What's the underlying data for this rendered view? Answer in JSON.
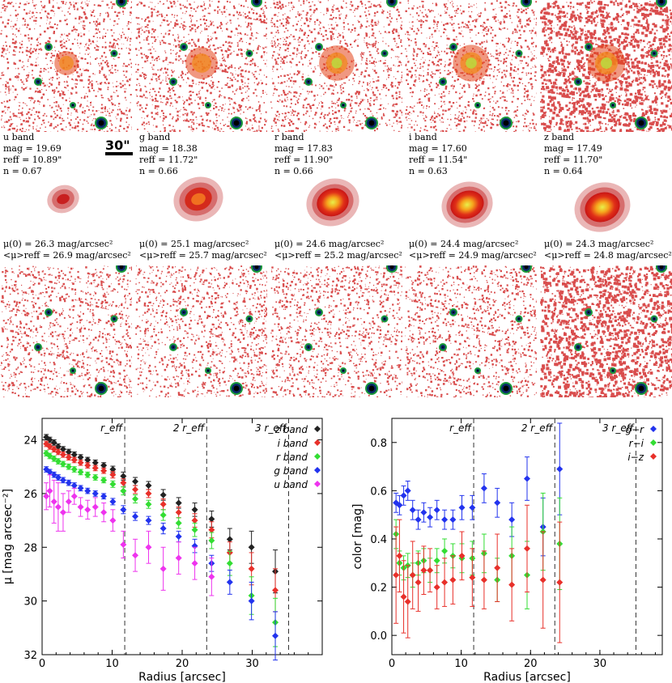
{
  "scale_bar": "30\"",
  "bands": [
    {
      "name": "u band",
      "mag": "mag = 19.69",
      "reff": "reff = 10.89\"",
      "n": "n = 0.67",
      "mu0": "μ(0) = 26.3 mag/arcsec²",
      "mureff": "<μ>reff = 26.9 mag/arcsec²"
    },
    {
      "name": "g band",
      "mag": "mag = 18.38",
      "reff": "reff = 11.72\"",
      "n": "n = 0.66",
      "mu0": "μ(0) = 25.1 mag/arcsec²",
      "mureff": "<μ>reff = 25.7 mag/arcsec²"
    },
    {
      "name": "r band",
      "mag": "mag = 17.83",
      "reff": "reff = 11.90\"",
      "n": "n = 0.66",
      "mu0": "μ(0) = 24.6 mag/arcsec²",
      "mureff": "<μ>reff = 25.2 mag/arcsec²"
    },
    {
      "name": "i band",
      "mag": "mag = 17.60",
      "reff": "reff = 11.54\"",
      "n": "n = 0.63",
      "mu0": "μ(0) = 24.4 mag/arcsec²",
      "mureff": "<μ>reff = 24.9 mag/arcsec²"
    },
    {
      "name": "z band",
      "mag": "mag = 17.49",
      "reff": "reff = 11.70\"",
      "n": "n = 0.64",
      "mu0": "μ(0) = 24.3 mag/arcsec²",
      "mureff": "<μ>reff = 24.8 mag/arcsec²"
    }
  ],
  "colors": {
    "z": "#222222",
    "i": "#e8302a",
    "r": "#33dd33",
    "g": "#2233ee",
    "u": "#ee33ee",
    "bg_red": "#cc1111"
  },
  "chart_data": [
    {
      "type": "scatter",
      "title": "",
      "xlabel": "Radius [arcsec]",
      "ylabel": "μ [mag arcsec⁻²]",
      "xlim": [
        0,
        40
      ],
      "ylim": [
        32,
        23.2
      ],
      "xticks": [
        "0",
        "10",
        "20",
        "30"
      ],
      "yticks": [
        "24",
        "26",
        "28",
        "30",
        "32"
      ],
      "reff_lines": [
        {
          "x": 11.8,
          "label": "r_eff"
        },
        {
          "x": 23.5,
          "label": "2 r_eff"
        },
        {
          "x": 35.2,
          "label": "3 r_eff"
        }
      ],
      "legend": [
        "z band",
        "i band",
        "r band",
        "g band",
        "u band"
      ],
      "series": [
        {
          "name": "z band",
          "x": [
            0.6,
            1.1,
            1.7,
            2.3,
            3,
            3.8,
            4.6,
            5.5,
            6.5,
            7.6,
            8.8,
            10.1,
            11.6,
            13.3,
            15.2,
            17.3,
            19.5,
            21.8,
            24.2,
            26.8,
            29.9,
            33.3
          ],
          "y": [
            23.9,
            24.0,
            24.1,
            24.25,
            24.35,
            24.45,
            24.55,
            24.65,
            24.75,
            24.85,
            24.95,
            25.1,
            25.35,
            25.55,
            25.7,
            26.05,
            26.35,
            26.6,
            26.95,
            27.7,
            28.0,
            28.9
          ],
          "err": [
            0.1,
            0.1,
            0.1,
            0.1,
            0.1,
            0.1,
            0.1,
            0.1,
            0.1,
            0.1,
            0.1,
            0.12,
            0.15,
            0.15,
            0.15,
            0.2,
            0.2,
            0.25,
            0.3,
            0.4,
            0.6,
            0.8
          ]
        },
        {
          "name": "i band",
          "x": [
            0.6,
            1.1,
            1.7,
            2.3,
            3,
            3.8,
            4.6,
            5.5,
            6.5,
            7.6,
            8.8,
            10.1,
            11.6,
            13.3,
            15.2,
            17.3,
            19.5,
            21.8,
            24.2,
            26.8,
            29.9,
            33.3
          ],
          "y": [
            24.15,
            24.25,
            24.35,
            24.45,
            24.55,
            24.65,
            24.75,
            24.85,
            24.95,
            25.05,
            25.15,
            25.3,
            25.6,
            25.85,
            26.0,
            26.4,
            26.7,
            27.0,
            27.35,
            28.2,
            28.8,
            29.6
          ],
          "err": [
            0.1,
            0.1,
            0.1,
            0.1,
            0.1,
            0.1,
            0.1,
            0.1,
            0.1,
            0.1,
            0.1,
            0.12,
            0.15,
            0.15,
            0.15,
            0.2,
            0.2,
            0.25,
            0.3,
            0.4,
            0.6,
            0.8
          ]
        },
        {
          "name": "r band",
          "x": [
            0.6,
            1.1,
            1.7,
            2.3,
            3,
            3.8,
            4.6,
            5.5,
            6.5,
            7.6,
            8.8,
            10.1,
            11.6,
            13.3,
            15.2,
            17.3,
            19.5,
            21.8,
            24.2,
            26.8,
            29.9,
            33.3
          ],
          "y": [
            24.5,
            24.6,
            24.7,
            24.8,
            24.9,
            25.0,
            25.1,
            25.2,
            25.3,
            25.4,
            25.5,
            25.65,
            25.9,
            26.2,
            26.4,
            26.8,
            27.1,
            27.35,
            27.75,
            28.6,
            29.8,
            30.8
          ],
          "err": [
            0.1,
            0.1,
            0.1,
            0.1,
            0.1,
            0.1,
            0.1,
            0.1,
            0.1,
            0.1,
            0.1,
            0.12,
            0.15,
            0.15,
            0.15,
            0.2,
            0.2,
            0.25,
            0.3,
            0.45,
            0.7,
            0.9
          ]
        },
        {
          "name": "g band",
          "x": [
            0.6,
            1.1,
            1.7,
            2.3,
            3,
            3.8,
            4.6,
            5.5,
            6.5,
            7.6,
            8.8,
            10.1,
            11.6,
            13.3,
            15.2,
            17.3,
            19.5,
            21.8,
            24.2,
            26.8,
            29.9,
            33.3
          ],
          "y": [
            25.1,
            25.2,
            25.3,
            25.4,
            25.5,
            25.6,
            25.7,
            25.8,
            25.9,
            26.0,
            26.1,
            26.3,
            26.6,
            26.85,
            27.0,
            27.3,
            27.6,
            27.95,
            28.6,
            29.3,
            30.0,
            31.3
          ],
          "err": [
            0.1,
            0.1,
            0.1,
            0.1,
            0.1,
            0.1,
            0.1,
            0.1,
            0.1,
            0.1,
            0.1,
            0.12,
            0.15,
            0.15,
            0.15,
            0.2,
            0.2,
            0.25,
            0.3,
            0.45,
            0.7,
            0.9
          ]
        },
        {
          "name": "u band",
          "x": [
            0.6,
            1.1,
            1.7,
            2.3,
            3,
            3.8,
            4.6,
            5.5,
            6.5,
            7.6,
            8.8,
            10.1,
            11.6,
            13.3,
            15.2,
            17.3,
            19.5,
            21.8,
            24.2
          ],
          "y": [
            26.1,
            25.9,
            26.3,
            26.5,
            26.7,
            26.3,
            26.1,
            26.5,
            26.6,
            26.5,
            26.7,
            27.0,
            27.9,
            28.3,
            28.0,
            28.8,
            28.4,
            28.6,
            29.1
          ],
          "err": [
            0.5,
            0.6,
            0.8,
            0.9,
            0.7,
            0.4,
            0.3,
            0.35,
            0.35,
            0.35,
            0.35,
            0.4,
            0.5,
            0.6,
            0.6,
            0.8,
            0.6,
            0.6,
            0.7
          ]
        }
      ]
    },
    {
      "type": "scatter",
      "title": "",
      "xlabel": "Radius [arcsec]",
      "ylabel": "color [mag]",
      "xlim": [
        0,
        39
      ],
      "ylim": [
        -0.08,
        0.9
      ],
      "xticks": [
        "0",
        "10",
        "20",
        "30"
      ],
      "yticks": [
        "0.0",
        "0.2",
        "0.4",
        "0.6",
        "0.8"
      ],
      "reff_lines": [
        {
          "x": 11.8,
          "label": "r_eff"
        },
        {
          "x": 23.5,
          "label": "2 r_eff"
        },
        {
          "x": 35.2,
          "label": "3 r_eff"
        }
      ],
      "legend": [
        "g−r",
        "r−i",
        "i−z"
      ],
      "series": [
        {
          "name": "g−r",
          "x": [
            0.6,
            1.1,
            1.7,
            2.3,
            3,
            3.8,
            4.6,
            5.5,
            6.5,
            7.6,
            8.8,
            10.1,
            11.6,
            13.3,
            15.2,
            17.3,
            19.5,
            21.8,
            24.2
          ],
          "y": [
            0.55,
            0.54,
            0.58,
            0.6,
            0.52,
            0.48,
            0.51,
            0.49,
            0.52,
            0.48,
            0.48,
            0.53,
            0.53,
            0.61,
            0.55,
            0.48,
            0.65,
            0.45,
            0.69
          ],
          "err": [
            0.04,
            0.04,
            0.04,
            0.04,
            0.04,
            0.04,
            0.04,
            0.04,
            0.04,
            0.04,
            0.04,
            0.05,
            0.05,
            0.06,
            0.06,
            0.07,
            0.09,
            0.12,
            0.19
          ]
        },
        {
          "name": "r−i",
          "x": [
            0.6,
            1.1,
            1.7,
            2.3,
            3,
            3.8,
            4.6,
            5.5,
            6.5,
            7.6,
            8.8,
            10.1,
            11.6,
            13.3,
            15.2,
            17.3,
            19.5,
            21.8,
            24.2
          ],
          "y": [
            0.42,
            0.3,
            0.28,
            0.29,
            0.25,
            0.3,
            0.31,
            0.27,
            0.31,
            0.35,
            0.33,
            0.32,
            0.32,
            0.34,
            0.23,
            0.33,
            0.25,
            0.43,
            0.38
          ],
          "err": [
            0.06,
            0.05,
            0.05,
            0.05,
            0.05,
            0.05,
            0.05,
            0.05,
            0.05,
            0.05,
            0.05,
            0.06,
            0.07,
            0.08,
            0.09,
            0.12,
            0.14,
            0.16,
            0.19
          ]
        },
        {
          "name": "i−z",
          "x": [
            0.6,
            1.1,
            1.7,
            2.3,
            3,
            3.8,
            4.6,
            5.5,
            6.5,
            7.6,
            8.8,
            10.1,
            11.6,
            13.3,
            15.2,
            17.3,
            19.5,
            21.8,
            24.2
          ],
          "y": [
            0.25,
            0.33,
            0.16,
            0.14,
            0.25,
            0.22,
            0.27,
            0.27,
            0.2,
            0.22,
            0.23,
            0.33,
            0.24,
            0.23,
            0.28,
            0.21,
            0.36,
            0.23,
            0.22
          ],
          "err": [
            0.2,
            0.15,
            0.15,
            0.15,
            0.14,
            0.12,
            0.1,
            0.09,
            0.09,
            0.1,
            0.1,
            0.1,
            0.12,
            0.12,
            0.14,
            0.15,
            0.18,
            0.2,
            0.25
          ]
        }
      ]
    }
  ]
}
